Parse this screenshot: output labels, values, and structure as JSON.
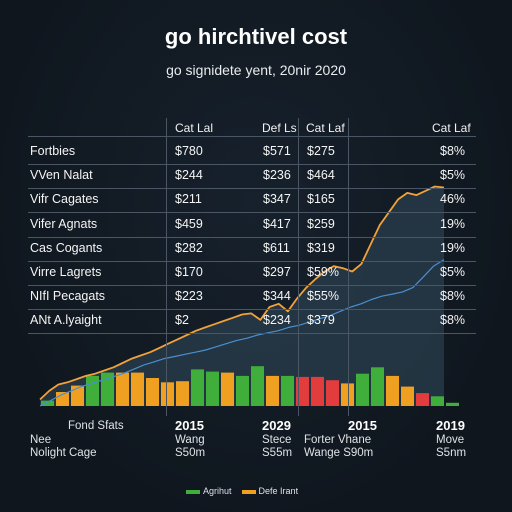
{
  "title": "go hirchtivel cost",
  "subtitle": "go signidete yent, 20nir 2020",
  "table": {
    "headers": [
      "Cat Lal",
      "Def Ls",
      "Cat Laf",
      "Cat Laf"
    ],
    "rows": [
      {
        "label": "Fortbies",
        "c1": "$780",
        "c2": "$571",
        "c3": "$275",
        "c4": "$8%"
      },
      {
        "label": "VVen Nalat",
        "c1": "$244",
        "c2": "$236",
        "c3": "$464",
        "c4": "$5%"
      },
      {
        "label": "Vifr Cagates",
        "c1": "$211",
        "c2": "$347",
        "c3": "$165",
        "c4": "46%"
      },
      {
        "label": "Vifer Agnats",
        "c1": "$459",
        "c2": "$417",
        "c3": "$259",
        "c4": "19%"
      },
      {
        "label": "Cas Cogants",
        "c1": "$282",
        "c2": "$611",
        "c3": "$319",
        "c4": "19%"
      },
      {
        "label": "Virre Lagrets",
        "c1": "$170",
        "c2": "$297",
        "c3": "$59%",
        "c4": "$5%"
      },
      {
        "label": "NIfI Pecagats",
        "c1": "$223",
        "c2": "$344",
        "c3": "$55%",
        "c4": "$8%"
      },
      {
        "label": "ANt A.lyaight",
        "c1": "$2",
        "c2": "$234",
        "c3": "$379",
        "c4": "$8%"
      }
    ]
  },
  "footer": {
    "left_label": "Fond Sfats",
    "left_lines": [
      "Nee",
      "Nolight Cage"
    ],
    "years": [
      "2015",
      "2029",
      "2015",
      "2019"
    ],
    "col1_lines": [
      "Wang",
      "S50m"
    ],
    "col2_lines": [
      "Stece",
      "S55m"
    ],
    "col3_lines": [
      "Forter  Vhane",
      "Wange  S90m"
    ],
    "col4_lines": [
      "Move",
      "S5nm"
    ]
  },
  "legend": {
    "items": [
      {
        "label": "Agrihut",
        "color": "#3fae3a"
      },
      {
        "label": "Defe Irant",
        "color": "#f0a020"
      }
    ]
  },
  "chart_data": {
    "type": "bar",
    "colors": {
      "orange": "#f0a020",
      "green": "#3fae3a",
      "red": "#e23c3c",
      "line_main": "#f2a23a",
      "line_secondary": "#4a8fd0",
      "area_fill": "#2b4050"
    },
    "bars": [
      {
        "value": 5,
        "color": "green"
      },
      {
        "value": 13,
        "color": "orange"
      },
      {
        "value": 19,
        "color": "orange"
      },
      {
        "value": 28,
        "color": "green"
      },
      {
        "value": 31,
        "color": "green"
      },
      {
        "value": 31,
        "color": "orange"
      },
      {
        "value": 31,
        "color": "orange"
      },
      {
        "value": 26,
        "color": "orange"
      },
      {
        "value": 22,
        "color": "orange"
      },
      {
        "value": 23,
        "color": "orange"
      },
      {
        "value": 34,
        "color": "green"
      },
      {
        "value": 32,
        "color": "green"
      },
      {
        "value": 31,
        "color": "orange"
      },
      {
        "value": 28,
        "color": "green"
      },
      {
        "value": 37,
        "color": "green"
      },
      {
        "value": 28,
        "color": "orange"
      },
      {
        "value": 28,
        "color": "green"
      },
      {
        "value": 27,
        "color": "red"
      },
      {
        "value": 27,
        "color": "red"
      },
      {
        "value": 24,
        "color": "red"
      },
      {
        "value": 21,
        "color": "orange"
      },
      {
        "value": 30,
        "color": "green"
      },
      {
        "value": 36,
        "color": "green"
      },
      {
        "value": 28,
        "color": "orange"
      },
      {
        "value": 18,
        "color": "orange"
      },
      {
        "value": 12,
        "color": "red"
      },
      {
        "value": 9,
        "color": "green"
      },
      {
        "value": 3,
        "color": "green"
      }
    ],
    "line_main": [
      6,
      14,
      20,
      22,
      25,
      28,
      30,
      33,
      36,
      40,
      44,
      47,
      50,
      54,
      58,
      62,
      66,
      70,
      73,
      76,
      79,
      82,
      85,
      86,
      80,
      92,
      95,
      88,
      100,
      110,
      118,
      125,
      130,
      128,
      125,
      132,
      150,
      168,
      180,
      192,
      198,
      196,
      200,
      204,
      203
    ],
    "line_secondary": [
      0,
      5,
      10,
      14,
      18,
      21,
      24,
      27,
      30,
      34,
      38,
      41,
      44,
      46,
      48,
      50,
      52,
      55,
      58,
      61,
      63,
      66,
      68,
      70,
      73,
      75,
      78,
      81,
      84,
      88,
      92,
      95,
      99,
      102,
      104,
      106,
      110,
      120,
      130,
      136
    ],
    "ylim": [
      0,
      210
    ]
  }
}
